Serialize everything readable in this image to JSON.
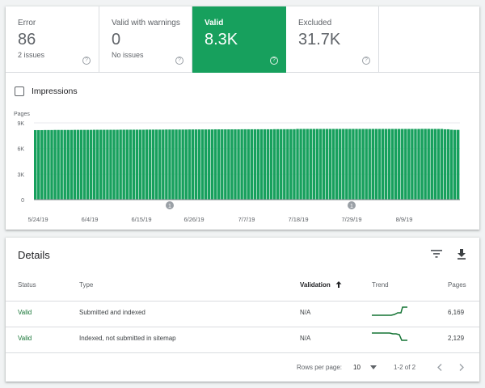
{
  "tiles": [
    {
      "label": "Error",
      "value": "86",
      "sub": "2 issues",
      "active": false
    },
    {
      "label": "Valid with warnings",
      "value": "0",
      "sub": "No issues",
      "active": false
    },
    {
      "label": "Valid",
      "value": "8.3K",
      "sub": "",
      "active": true
    },
    {
      "label": "Excluded",
      "value": "31.7K",
      "sub": "",
      "active": false
    }
  ],
  "impressions_label": "Impressions",
  "chart_data": {
    "type": "bar",
    "ylabel": "Pages",
    "ylim": [
      0,
      9000
    ],
    "yticks": [
      0,
      3000,
      6000,
      9000
    ],
    "ytick_labels": [
      "0",
      "3K",
      "6K",
      "9K"
    ],
    "xtick_labels": [
      "5/24/19",
      "6/4/19",
      "6/15/19",
      "6/26/19",
      "7/7/19",
      "7/18/19",
      "7/29/19",
      "8/9/19"
    ],
    "annotation_markers": [
      "1",
      "1"
    ],
    "bar_color": "#17a05d",
    "series": [
      {
        "values": [
          8150,
          8150,
          8150,
          8160,
          8160,
          8160,
          8170,
          8170,
          8170,
          8170,
          8170,
          8170,
          8180,
          8180,
          8180,
          8180,
          8180,
          8180,
          8190,
          8190,
          8190,
          8190,
          8190,
          8190,
          8190,
          8190,
          8200,
          8200,
          8200,
          8200,
          8200,
          8200,
          8200,
          8200,
          8210,
          8210,
          8210,
          8210,
          8210,
          8210,
          8220,
          8220,
          8220,
          8220,
          8220,
          8220,
          8220,
          8230,
          8230,
          8230,
          8230,
          8230,
          8230,
          8230,
          8230,
          8240,
          8240,
          8240,
          8240,
          8240,
          8240,
          8240,
          8240,
          8250,
          8250,
          8250,
          8250,
          8250,
          8250,
          8250,
          8250,
          8250,
          8250,
          8260,
          8260,
          8260,
          8260,
          8260,
          8260,
          8260,
          8290,
          8290,
          8290,
          8290,
          8290,
          8290,
          8290,
          8290,
          8290,
          8290,
          8290,
          8290,
          8290,
          8290,
          8290,
          8290,
          8290,
          8290,
          8290,
          8290,
          8290,
          8290,
          8290,
          8290,
          8290,
          8290,
          8290,
          8290,
          8290,
          8290,
          8290,
          8290,
          8290,
          8290,
          8290,
          8290,
          8290,
          8290,
          8300,
          8300,
          8300,
          8290,
          8290,
          8290,
          8290,
          8250,
          8250,
          8200,
          8180,
          8180
        ]
      }
    ]
  },
  "details": {
    "title": "Details",
    "filter_icon": "filter-icon",
    "download_icon": "download-icon",
    "columns": {
      "status": "Status",
      "type": "Type",
      "validation": "Validation",
      "trend": "Trend",
      "pages": "Pages"
    },
    "rows": [
      {
        "status": "Valid",
        "type": "Submitted and indexed",
        "validation": "N/A",
        "pages": "6,169"
      },
      {
        "status": "Valid",
        "type": "Indexed, not submitted in sitemap",
        "validation": "N/A",
        "pages": "2,129"
      }
    ],
    "rows_per_page_label": "Rows per page:",
    "rows_per_page_value": "10",
    "range_text": "1-2 of 2"
  }
}
